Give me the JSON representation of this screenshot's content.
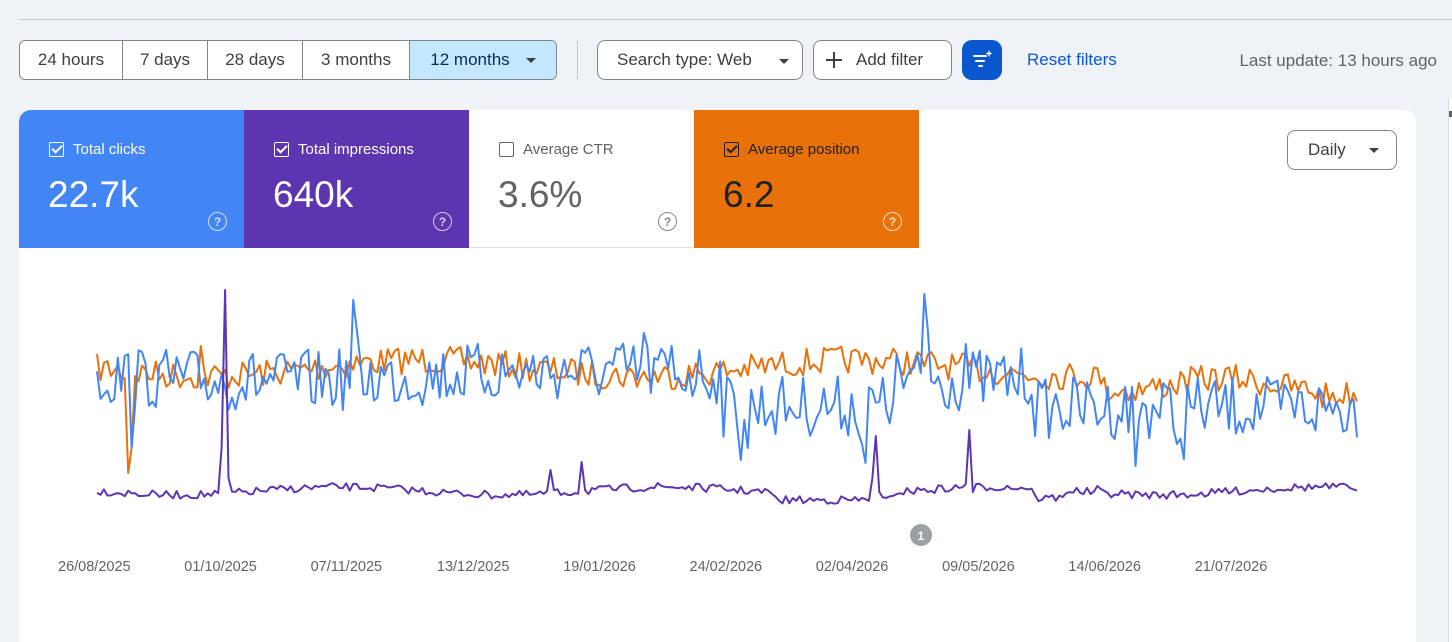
{
  "toolbar": {
    "ranges": [
      {
        "label": "24 hours",
        "selected": false
      },
      {
        "label": "7 days",
        "selected": false
      },
      {
        "label": "28 days",
        "selected": false
      },
      {
        "label": "3 months",
        "selected": false
      },
      {
        "label": "12 months",
        "selected": true
      }
    ],
    "search_type_label": "Search type: Web",
    "add_filter_label": "Add filter",
    "reset_label": "Reset filters",
    "last_update": "Last update: 13 hours ago"
  },
  "metrics": {
    "clicks": {
      "label": "Total clicks",
      "value": "22.7k",
      "checked": true,
      "color": "#4285f4"
    },
    "impressions": {
      "label": "Total impressions",
      "value": "640k",
      "checked": true,
      "color": "#5e35b1"
    },
    "ctr": {
      "label": "Average CTR",
      "value": "3.6%",
      "checked": false,
      "color": "#ffffff"
    },
    "position": {
      "label": "Average position",
      "value": "6.2",
      "checked": true,
      "color": "#e8710a"
    }
  },
  "granularity": {
    "label": "Daily"
  },
  "annotation": {
    "label": "1"
  },
  "chart_data": {
    "type": "line",
    "x_tick_labels": [
      "26/08/2025",
      "01/10/2025",
      "07/11/2025",
      "13/12/2025",
      "19/01/2026",
      "24/02/2026",
      "02/04/2026",
      "09/05/2026",
      "14/06/2026",
      "21/07/2026"
    ],
    "series": [
      {
        "name": "Total clicks",
        "color": "#4285f4"
      },
      {
        "name": "Total impressions",
        "color": "#5e35b1"
      },
      {
        "name": "Average position",
        "color": "#e8710a"
      }
    ],
    "grid": false,
    "legend": "metric tiles above chart"
  }
}
